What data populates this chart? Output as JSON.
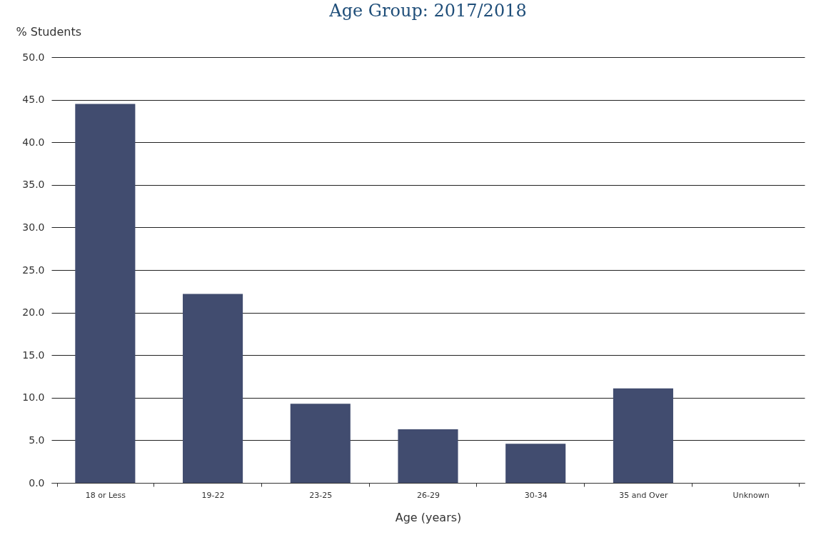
{
  "chart_data": {
    "type": "bar",
    "title": "Age Group: 2017/2018",
    "xlabel": "Age (years)",
    "ylabel": "% Students",
    "categories": [
      "18 or Less",
      "19-22",
      "23-25",
      "26-29",
      "30-34",
      "35 and Over",
      "Unknown"
    ],
    "values": [
      44.5,
      22.2,
      9.3,
      6.3,
      4.6,
      11.1,
      0
    ],
    "color": "#414c6f",
    "ylim": [
      0,
      50
    ],
    "yticks": [
      {
        "value": 0,
        "label": "0.0"
      },
      {
        "value": 5,
        "label": "5.0"
      },
      {
        "value": 10,
        "label": "10.0"
      },
      {
        "value": 15,
        "label": "15.0"
      },
      {
        "value": 20,
        "label": "20.0"
      },
      {
        "value": 25,
        "label": "25.0"
      },
      {
        "value": 30,
        "label": "30.0"
      },
      {
        "value": 35,
        "label": "35.0"
      },
      {
        "value": 40,
        "label": "40.0"
      },
      {
        "value": 45,
        "label": "45.0"
      },
      {
        "value": 50,
        "label": "50.0"
      }
    ],
    "grid": "y"
  }
}
